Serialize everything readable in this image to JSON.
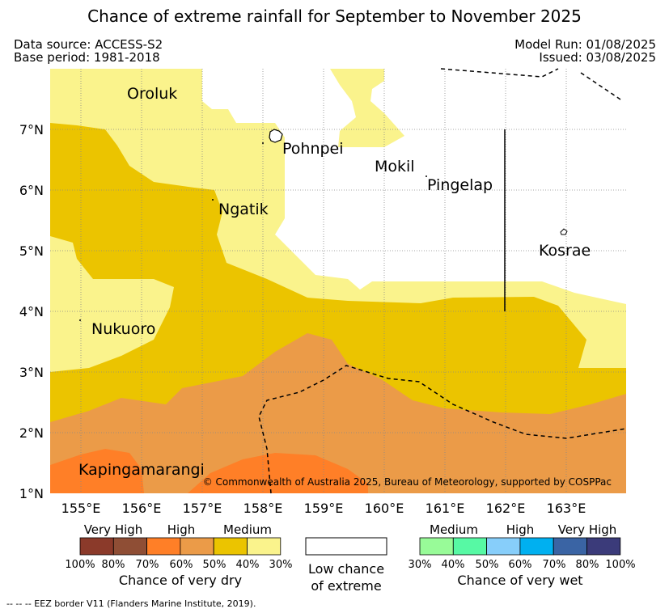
{
  "title": "Chance of extreme rainfall for September to November 2025",
  "data_source": "Data source: ACCESS-S2",
  "base_period": "Base period: 1981-2018",
  "model_run": "Model Run: 01/08/2025",
  "issued": "Issued: 03/08/2025",
  "places": {
    "oroluk": "Oroluk",
    "pohnpei": "Pohnpei",
    "mokil": "Mokil",
    "pingelap": "Pingelap",
    "ngatik": "Ngatik",
    "kosrae": "Kosrae",
    "nukuoro": "Nukuoro",
    "kapingamarangi": "Kapingamarangi"
  },
  "lat_ticks": [
    "7°N",
    "6°N",
    "5°N",
    "4°N",
    "3°N",
    "2°N",
    "1°N"
  ],
  "lon_ticks": [
    "155°E",
    "156°E",
    "157°E",
    "158°E",
    "159°E",
    "160°E",
    "161°E",
    "162°E",
    "163°E"
  ],
  "copyright": "© Commonwealth of Australia 2025, Bureau of Meteorology, supported by COSPPac",
  "legend": {
    "dry": {
      "headers": [
        "Very High",
        "High",
        "Medium"
      ],
      "pcts": [
        "100%",
        "80%",
        "70%",
        "60%",
        "50%",
        "40%",
        "30%"
      ],
      "colors": [
        "#8b3a2a",
        "#8f4e35",
        "#ff7f27",
        "#eb9b48",
        "#ebc400",
        "#faf38c"
      ],
      "title": "Chance of very dry"
    },
    "low": {
      "title_line1": "Low chance",
      "title_line2": "of extreme",
      "color": "#ffffff"
    },
    "wet": {
      "headers": [
        "Medium",
        "High",
        "Very High"
      ],
      "pcts": [
        "30%",
        "40%",
        "50%",
        "60%",
        "70%",
        "80%",
        "100%"
      ],
      "colors": [
        "#98fb98",
        "#57f9a4",
        "#87cefa",
        "#00b0f0",
        "#3a64a4",
        "#3b3b7a"
      ],
      "title": "Chance of very wet"
    }
  },
  "eez_note": "--  --  -- EEZ border V11 (Flanders Marine Institute, 2019)."
}
